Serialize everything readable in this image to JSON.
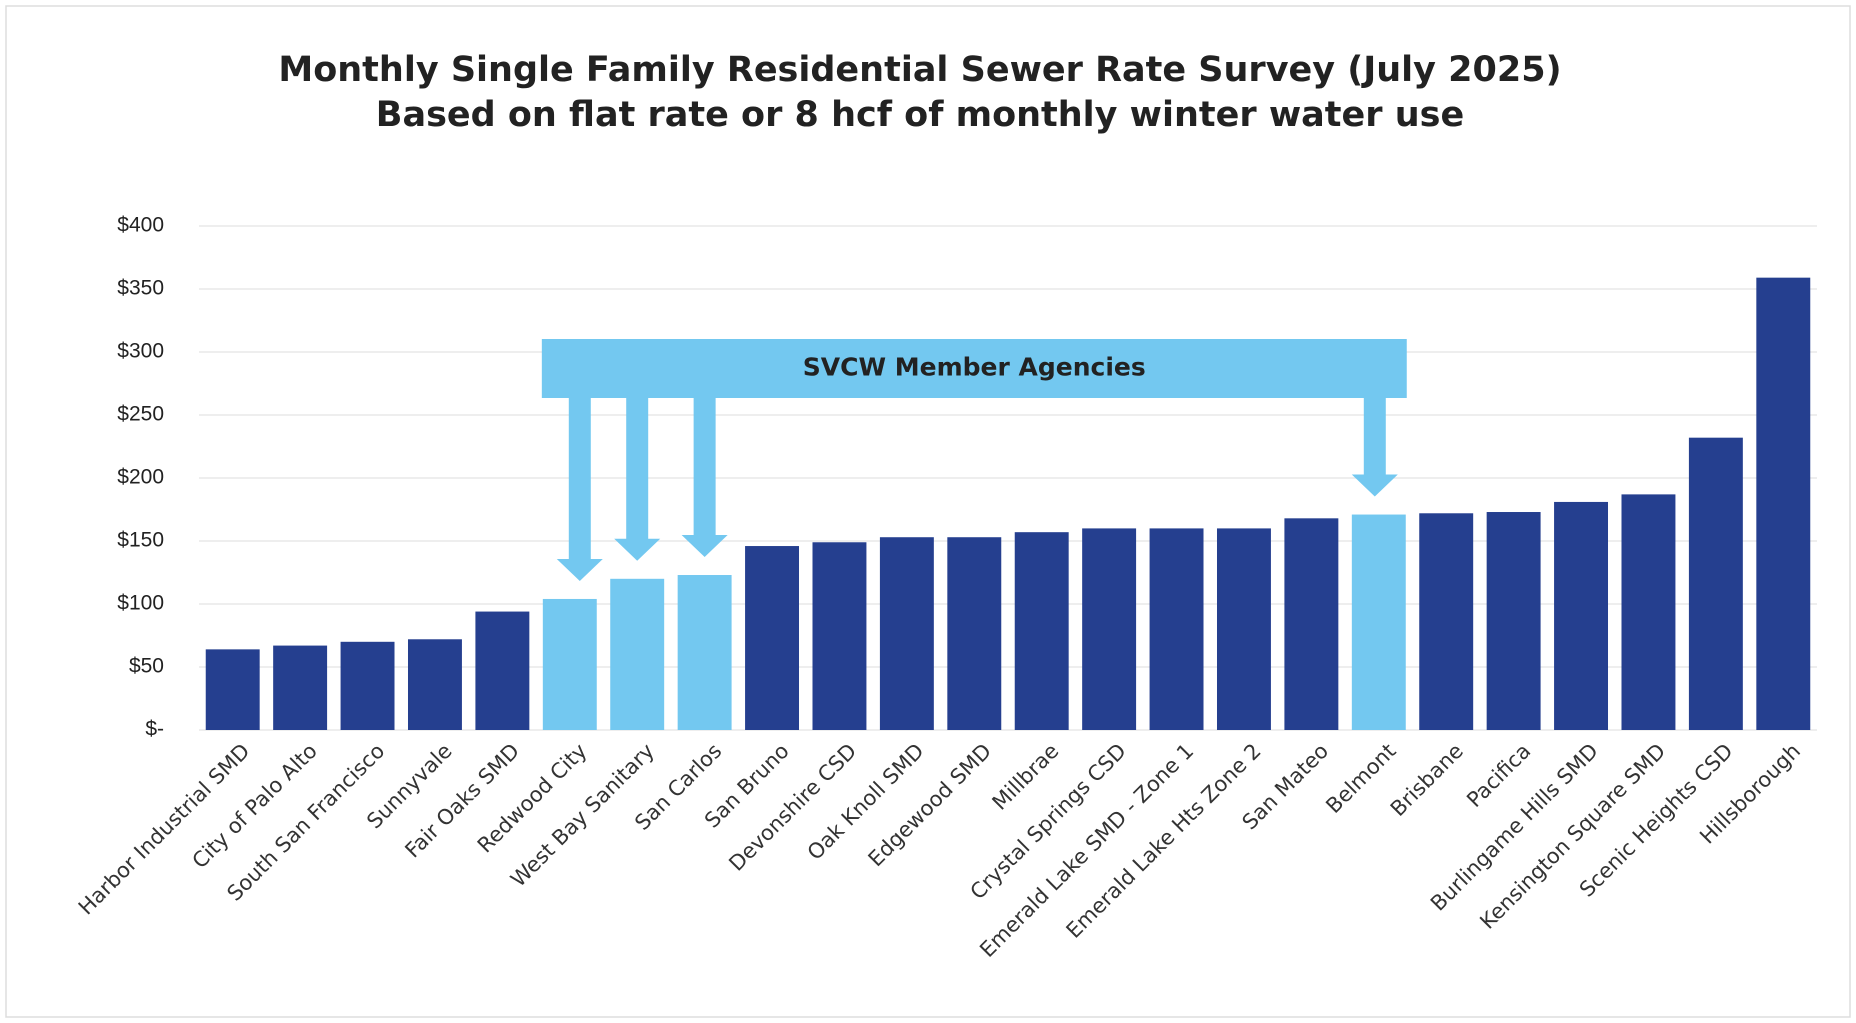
{
  "chart_data": {
    "type": "bar",
    "title": "Monthly Single Family Residential Sewer Rate Survey (July 2025)",
    "subtitle": "Based on flat rate or 8 hcf of monthly winter water use",
    "annotation": "SVCW Member Agencies",
    "categories": [
      "Harbor Industrial SMD",
      "City of Palo Alto",
      "South San Francisco",
      "Sunnyvale",
      "Fair Oaks SMD",
      "Redwood City",
      "West Bay Sanitary",
      "San Carlos",
      "San Bruno",
      "Devonshire CSD",
      "Oak Knoll SMD",
      "Edgewood SMD",
      "Millbrae",
      "Crystal Springs CSD",
      "Emerald Lake SMD - Zone 1",
      "Emerald Lake Hts Zone 2",
      "San Mateo",
      "Belmont",
      "Brisbane",
      "Pacifica",
      "Burlingame Hills SMD",
      "Kensington Square SMD",
      "Scenic Heights CSD",
      "Hillsborough"
    ],
    "values": [
      64,
      67,
      70,
      72,
      94,
      104,
      120,
      123,
      146,
      149,
      153,
      153,
      157,
      160,
      160,
      160,
      168,
      171,
      172,
      173,
      181,
      187,
      232,
      359
    ],
    "colors": [
      "#253f8f",
      "#253f8f",
      "#253f8f",
      "#253f8f",
      "#253f8f",
      "#73c8f0",
      "#73c8f0",
      "#73c8f0",
      "#253f8f",
      "#253f8f",
      "#253f8f",
      "#253f8f",
      "#253f8f",
      "#253f8f",
      "#253f8f",
      "#253f8f",
      "#253f8f",
      "#73c8f0",
      "#253f8f",
      "#253f8f",
      "#253f8f",
      "#253f8f",
      "#253f8f",
      "#253f8f"
    ],
    "ylim": [
      0,
      400
    ],
    "yticks": [
      {
        "value": 0,
        "label": "$-"
      },
      {
        "value": 50,
        "label": "$50"
      },
      {
        "value": 100,
        "label": "$100"
      },
      {
        "value": 150,
        "label": "$150"
      },
      {
        "value": 200,
        "label": "$200"
      },
      {
        "value": 250,
        "label": "$250"
      },
      {
        "value": 300,
        "label": "$300"
      },
      {
        "value": 350,
        "label": "$350"
      },
      {
        "value": 400,
        "label": "$400"
      }
    ],
    "grid": true,
    "annotation_color": "#73c8f0"
  }
}
